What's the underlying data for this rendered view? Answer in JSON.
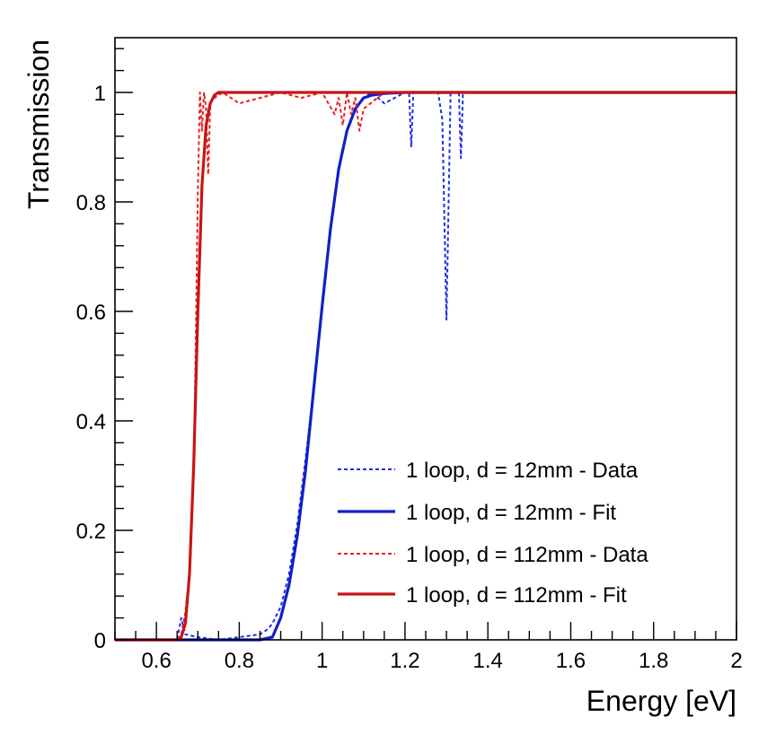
{
  "chart_data": {
    "type": "line",
    "title": "",
    "xlabel": "Energy [eV]",
    "ylabel": "Transmission",
    "xlim": [
      0.5,
      2.0
    ],
    "ylim": [
      0,
      1.1
    ],
    "grid": false,
    "legend_position": "bottom-right",
    "x_ticks": [
      0.6,
      0.8,
      1.0,
      1.2,
      1.4,
      1.6,
      1.8,
      2.0
    ],
    "x_tick_labels": [
      "0.6",
      "0.8",
      "1",
      "1.2",
      "1.4",
      "1.6",
      "1.8",
      "2"
    ],
    "y_ticks": [
      0,
      0.2,
      0.4,
      0.6,
      0.8,
      1.0
    ],
    "y_tick_labels": [
      "0",
      "0.2",
      "0.4",
      "0.6",
      "0.8",
      "1"
    ],
    "series": [
      {
        "name": "1 loop, d = 12mm - Data",
        "color": "#1f2fe0",
        "style": "dashed",
        "x": [
          0.5,
          0.6,
          0.65,
          0.66,
          0.67,
          0.7,
          0.75,
          0.8,
          0.85,
          0.87,
          0.88,
          0.9,
          0.92,
          0.94,
          0.96,
          0.98,
          1.0,
          1.02,
          1.04,
          1.06,
          1.08,
          1.1,
          1.12,
          1.15,
          1.2,
          1.21,
          1.215,
          1.22,
          1.25,
          1.28,
          1.29,
          1.3,
          1.31,
          1.32,
          1.33,
          1.335,
          1.34,
          1.35,
          1.5,
          1.8,
          2.0
        ],
        "y": [
          0,
          0,
          0,
          0.04,
          0.01,
          0.005,
          0.0,
          0.005,
          0.01,
          0.02,
          0.03,
          0.06,
          0.12,
          0.21,
          0.33,
          0.46,
          0.61,
          0.75,
          0.86,
          0.93,
          0.97,
          0.99,
          1.0,
          0.98,
          1.0,
          1.0,
          0.9,
          1.0,
          1.0,
          1.0,
          0.95,
          0.585,
          1.0,
          1.0,
          1.0,
          0.88,
          1.0,
          1.0,
          1.0,
          1.0,
          1.0
        ]
      },
      {
        "name": "1 loop, d = 12mm - Fit",
        "color": "#1020c8",
        "style": "solid",
        "x": [
          0.5,
          0.7,
          0.85,
          0.88,
          0.9,
          0.92,
          0.94,
          0.96,
          0.98,
          1.0,
          1.02,
          1.04,
          1.06,
          1.08,
          1.1,
          1.12,
          1.15,
          1.2,
          1.25,
          1.4,
          1.6,
          2.0
        ],
        "y": [
          0,
          0,
          0,
          0.005,
          0.04,
          0.1,
          0.19,
          0.31,
          0.46,
          0.61,
          0.75,
          0.86,
          0.93,
          0.97,
          0.99,
          0.995,
          0.998,
          1.0,
          1.0,
          1.0,
          1.0,
          1.0
        ]
      },
      {
        "name": "1 loop, d = 112mm - Data",
        "color": "#e82020",
        "style": "dashed",
        "x": [
          0.5,
          0.6,
          0.65,
          0.66,
          0.67,
          0.68,
          0.69,
          0.695,
          0.7,
          0.705,
          0.71,
          0.715,
          0.72,
          0.725,
          0.73,
          0.74,
          0.76,
          0.8,
          0.85,
          0.9,
          0.95,
          1.0,
          1.03,
          1.04,
          1.05,
          1.06,
          1.07,
          1.08,
          1.09,
          1.1,
          1.15,
          1.2,
          1.5,
          2.0
        ],
        "y": [
          0,
          0,
          0,
          0.01,
          0.05,
          0.12,
          0.3,
          0.55,
          0.82,
          1.0,
          0.93,
          1.0,
          0.97,
          0.85,
          0.98,
          0.99,
          1.0,
          0.98,
          0.99,
          1.0,
          0.99,
          1.0,
          0.96,
          0.99,
          0.94,
          1.0,
          0.96,
          0.99,
          0.93,
          0.97,
          1.0,
          1.0,
          1.0,
          1.0
        ]
      },
      {
        "name": "1 loop, d = 112mm - Fit",
        "color": "#c81414",
        "style": "solid",
        "x": [
          0.5,
          0.65,
          0.66,
          0.67,
          0.68,
          0.69,
          0.7,
          0.71,
          0.72,
          0.73,
          0.74,
          0.75,
          0.76,
          0.8,
          1.0,
          2.0
        ],
        "y": [
          0,
          0,
          0.005,
          0.03,
          0.12,
          0.32,
          0.6,
          0.83,
          0.94,
          0.98,
          0.995,
          1.0,
          1.0,
          1.0,
          1.0,
          1.0
        ]
      }
    ]
  }
}
